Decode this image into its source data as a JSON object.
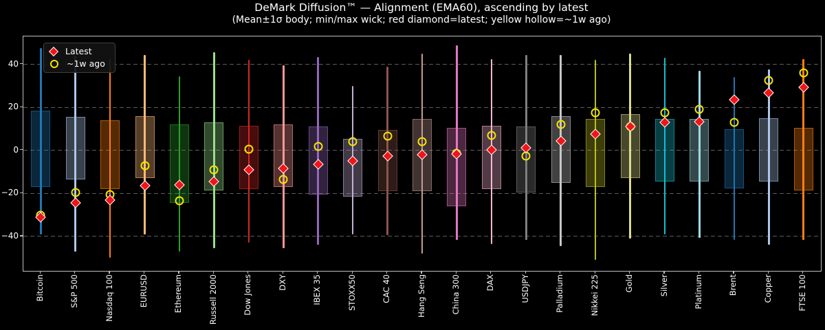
{
  "figure": {
    "title": "DeMark Diffusion™ — Alignment (EMA60), ascending by latest",
    "subtitle": "(Mean±1σ body; min/max wick; red diamond=latest; yellow hollow=~1w ago)",
    "background": "#000000",
    "text_color": "#ffffff",
    "spine_color": "#c2c2c2",
    "gridline_color": "#5c5c5c"
  },
  "legend": {
    "items": [
      {
        "icon": "latest-diamond-icon",
        "label": "Latest",
        "color": "#f01418",
        "edge": "#ffffff"
      },
      {
        "icon": "week-ago-circle-icon",
        "label": "~1w ago",
        "color": "#f5e400"
      }
    ]
  },
  "chart_data": {
    "type": "bar",
    "style": "range-candle: mean±1σ translucent body, min/max wick, latest red diamond, ~1w-ago yellow hollow circle",
    "title": "DeMark Diffusion™ — Alignment (EMA60), ascending by latest",
    "xlabel": "",
    "ylabel": "",
    "ylim": [
      -56,
      53
    ],
    "yticks": [
      40,
      20,
      0,
      -20,
      -40
    ],
    "grid": "horizontal-dashed",
    "legend_position": "upper-left",
    "marker_colors": {
      "latest": "#f01418",
      "week_ago": "#f5e400"
    },
    "categories": [
      "Bitcoin",
      "S&P 500",
      "Nasdaq 100",
      "EURUSD",
      "Ethereum",
      "Russell 2000",
      "Dow Jones",
      "DXY",
      "IBEX 35",
      "STOXX50",
      "CAC 40",
      "Hang Seng",
      "China 300",
      "DAX",
      "USDJPY",
      "Palladium",
      "Nikkei 225",
      "Gold",
      "Silver",
      "Platinum",
      "Brent",
      "Copper",
      "FTSE 100"
    ],
    "series": [
      {
        "name": "Bitcoin",
        "color": "#1f77b4",
        "max": 47.5,
        "min": -39,
        "body_high": 18.5,
        "body_low": -17,
        "latest": -31,
        "week_ago": -30.2
      },
      {
        "name": "S&P 500",
        "color": "#aec7e8",
        "max": 44,
        "min": -47,
        "body_high": 15.5,
        "body_low": -13.5,
        "latest": -24.5,
        "week_ago": -19.5
      },
      {
        "name": "Nasdaq 100",
        "color": "#ff7f0e",
        "max": 42.5,
        "min": -50,
        "body_high": 14,
        "body_low": -18,
        "latest": -23,
        "week_ago": -20.5
      },
      {
        "name": "EURUSD",
        "color": "#ffbb78",
        "max": 44.5,
        "min": -39,
        "body_high": 16,
        "body_low": -13,
        "latest": -16.5,
        "week_ago": -7
      },
      {
        "name": "Ethereum",
        "color": "#2ca02c",
        "max": 34.5,
        "min": -47,
        "body_high": 12,
        "body_low": -24.5,
        "latest": -16,
        "week_ago": -23.5
      },
      {
        "name": "Russell 2000",
        "color": "#98df8a",
        "max": 45.5,
        "min": -45.5,
        "body_high": 13,
        "body_low": -18.5,
        "latest": -14.5,
        "week_ago": -9
      },
      {
        "name": "Dow Jones",
        "color": "#d62728",
        "max": 42,
        "min": -43,
        "body_high": 11.5,
        "body_low": -18,
        "latest": -9,
        "week_ago": 0.5
      },
      {
        "name": "DXY",
        "color": "#ff9896",
        "max": 39.5,
        "min": -45.5,
        "body_high": 12,
        "body_low": -17,
        "latest": -8.5,
        "week_ago": -13.5
      },
      {
        "name": "IBEX 35",
        "color": "#9467bd",
        "max": 43.5,
        "min": -44,
        "body_high": 11,
        "body_low": -20.5,
        "latest": -6.5,
        "week_ago": 2
      },
      {
        "name": "STOXX50",
        "color": "#c5b0d5",
        "max": 30,
        "min": -39,
        "body_high": 5.5,
        "body_low": -21.5,
        "latest": -5,
        "week_ago": 4
      },
      {
        "name": "CAC 40",
        "color": "#8c564b",
        "max": 39,
        "min": -39.5,
        "body_high": 9.5,
        "body_low": -19,
        "latest": -2.5,
        "week_ago": 6.5
      },
      {
        "name": "Hang Seng",
        "color": "#c49c94",
        "max": 45,
        "min": -48,
        "body_high": 14.5,
        "body_low": -19,
        "latest": -2,
        "week_ago": 4
      },
      {
        "name": "China 300",
        "color": "#e377c2",
        "max": 49,
        "min": -41.5,
        "body_high": 10.5,
        "body_low": -26,
        "latest": -1.5,
        "week_ago": -1.3
      },
      {
        "name": "DAX",
        "color": "#f7b6d2",
        "max": 42.5,
        "min": -43.5,
        "body_high": 11.5,
        "body_low": -18,
        "latest": 0.3,
        "week_ago": 7
      },
      {
        "name": "USDJPY",
        "color": "#7f7f7f",
        "max": 44.5,
        "min": -41.5,
        "body_high": 11,
        "body_low": -19.5,
        "latest": 1.2,
        "week_ago": -2.5
      },
      {
        "name": "Palladium",
        "color": "#c7c7c7",
        "max": 44.5,
        "min": -44.5,
        "body_high": 16,
        "body_low": -15,
        "latest": 4.5,
        "week_ago": 12
      },
      {
        "name": "Nikkei 225",
        "color": "#bcbd22",
        "max": 42,
        "min": -51,
        "body_high": 14.5,
        "body_low": -17,
        "latest": 7.7,
        "week_ago": 17.5
      },
      {
        "name": "Gold",
        "color": "#dbdb8d",
        "max": 45,
        "min": -41,
        "body_high": 17,
        "body_low": -13,
        "latest": 11,
        "week_ago": 11
      },
      {
        "name": "Silver",
        "color": "#17becf",
        "max": 43,
        "min": -39,
        "body_high": 14.5,
        "body_low": -14.5,
        "latest": 13,
        "week_ago": 17.5
      },
      {
        "name": "Platinum",
        "color": "#9edae5",
        "max": 37,
        "min": -40.5,
        "body_high": 14.5,
        "body_low": -14.5,
        "latest": 13.5,
        "week_ago": 19
      },
      {
        "name": "Brent",
        "color": "#1f77b4",
        "max": 34,
        "min": -41.5,
        "body_high": 10,
        "body_low": -17.5,
        "latest": 23.5,
        "week_ago": 13
      },
      {
        "name": "Copper",
        "color": "#aec7e8",
        "max": 37.5,
        "min": -44,
        "body_high": 15,
        "body_low": -14.5,
        "latest": 26.8,
        "week_ago": 32.5
      },
      {
        "name": "FTSE 100",
        "color": "#ff7f0e",
        "max": 42.5,
        "min": -41.5,
        "body_high": 10.5,
        "body_low": -18.5,
        "latest": 29.5,
        "week_ago": 36
      }
    ]
  }
}
